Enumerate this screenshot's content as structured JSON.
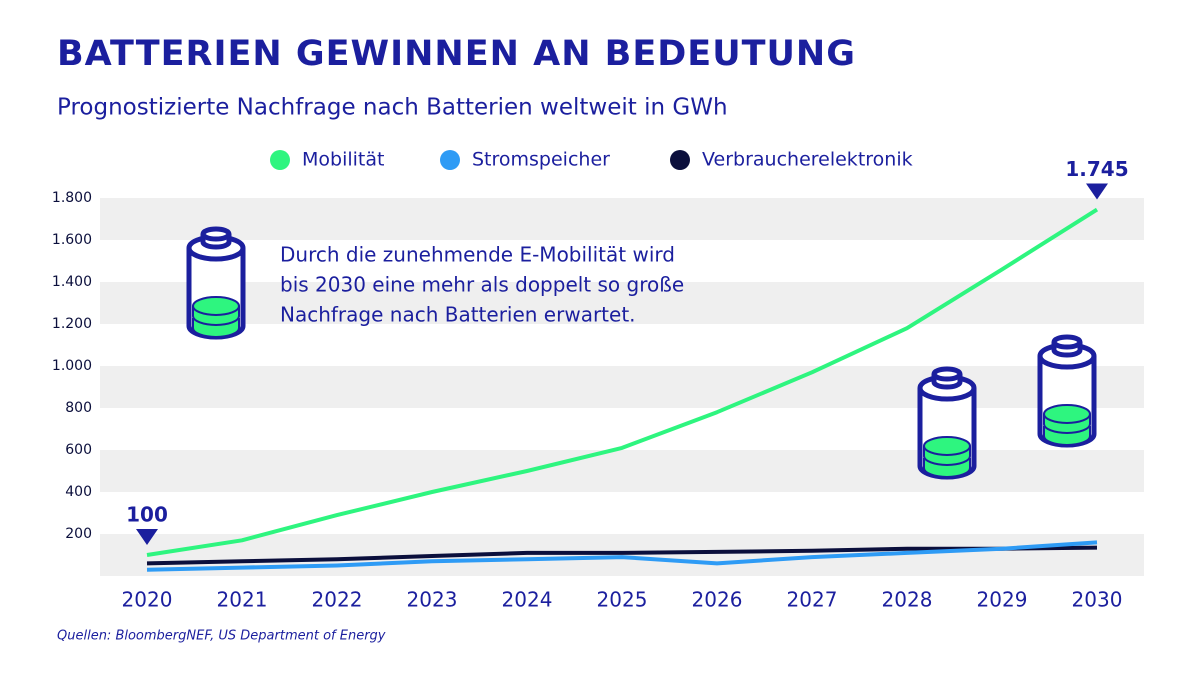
{
  "chart_data": {
    "type": "line",
    "title": "BATTERIEN GEWINNEN AN BEDEUTUNG",
    "subtitle": "Prognostizierte Nachfrage nach Batterien weltweit in GWh",
    "categories": [
      "2020",
      "2021",
      "2022",
      "2023",
      "2024",
      "2025",
      "2026",
      "2027",
      "2028",
      "2029",
      "2030"
    ],
    "series": [
      {
        "name": "Mobilität",
        "color": "#2ef57f",
        "values": [
          100,
          170,
          290,
          400,
          500,
          610,
          780,
          970,
          1180,
          1460,
          1745
        ],
        "value_labels": [
          "100",
          null,
          null,
          null,
          null,
          null,
          null,
          null,
          null,
          null,
          "1.745"
        ]
      },
      {
        "name": "Stromspeicher",
        "color": "#2e9bf5",
        "values": [
          30,
          40,
          50,
          70,
          80,
          90,
          60,
          90,
          110,
          130,
          160
        ]
      },
      {
        "name": "Verbraucherelektronik",
        "color": "#0b0f3c",
        "values": [
          60,
          70,
          80,
          95,
          110,
          110,
          115,
          120,
          130,
          130,
          135
        ]
      }
    ],
    "ylim": [
      0,
      1800
    ],
    "yticks": [
      200,
      400,
      600,
      800,
      {
        "value": 1000,
        "label": "1.000"
      },
      {
        "value": 1200,
        "label": "1.200"
      },
      {
        "value": 1400,
        "label": "1.400"
      },
      {
        "value": 1600,
        "label": "1.600"
      },
      {
        "value": 1800,
        "label": "1.800"
      }
    ],
    "grid": true,
    "annotation": [
      "Durch die zunehmende E-Mobilität wird",
      "bis 2030 eine mehr als doppelt so große",
      "Nachfrage nach Batterien erwartet."
    ],
    "source": "Quellen: BloombergNEF, US Department of Energy"
  }
}
